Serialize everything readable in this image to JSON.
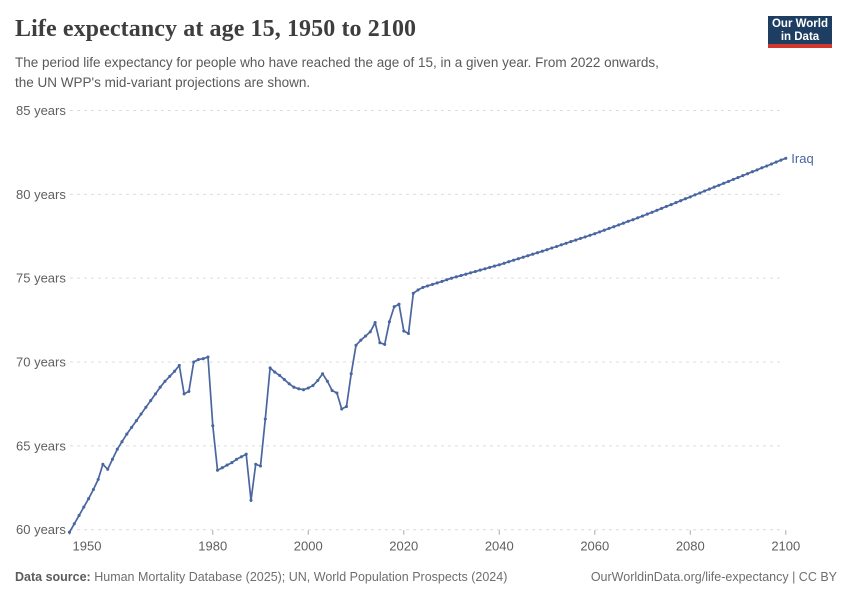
{
  "header": {
    "title": "Life expectancy at age 15, 1950 to 2100",
    "subtitle_line1": "The period life expectancy for people who have reached the age of 15, in a given year. From 2022 onwards,",
    "subtitle_line2": "the UN WPP's mid-variant projections are shown.",
    "logo": {
      "line1": "Our World",
      "line2": "in Data",
      "bg_color": "#1d3d63",
      "accent_color": "#d0372d"
    }
  },
  "footer": {
    "source_label": "Data source:",
    "source_text": "Human Mortality Database (2025); UN, World Population Prospects (2024)",
    "link_text": "OurWorldinData.org/life-expectancy | CC BY"
  },
  "chart_data": {
    "type": "line",
    "title": "Life expectancy at age 15, 1950 to 2100",
    "xlabel": "",
    "ylabel": "",
    "grid": "horizontal-dashed",
    "grid_color": "#dcdcdc",
    "axis_text_color": "#5f5f5f",
    "xlim": [
      1950,
      2100
    ],
    "ylim": [
      60,
      85
    ],
    "projection_start_year": 2022,
    "x_ticks": [
      {
        "value": 1950,
        "label": "1950"
      },
      {
        "value": 1980,
        "label": "1980"
      },
      {
        "value": 2000,
        "label": "2000"
      },
      {
        "value": 2020,
        "label": "2020"
      },
      {
        "value": 2040,
        "label": "2040"
      },
      {
        "value": 2060,
        "label": "2060"
      },
      {
        "value": 2080,
        "label": "2080"
      },
      {
        "value": 2100,
        "label": "2100"
      }
    ],
    "y_ticks": [
      {
        "value": 85,
        "label": "85 years"
      },
      {
        "value": 80,
        "label": "80 years"
      },
      {
        "value": 75,
        "label": "75 years"
      },
      {
        "value": 70,
        "label": "70 years"
      },
      {
        "value": 65,
        "label": "65 years"
      },
      {
        "value": 60,
        "label": "60 years"
      }
    ],
    "series": [
      {
        "name": "Iraq",
        "color": "#4a66a0",
        "points": [
          [
            1950,
            59.85
          ],
          [
            1951,
            60.35
          ],
          [
            1952,
            60.85
          ],
          [
            1953,
            61.35
          ],
          [
            1954,
            61.85
          ],
          [
            1955,
            62.4
          ],
          [
            1956,
            63.0
          ],
          [
            1957,
            63.9
          ],
          [
            1958,
            63.6
          ],
          [
            1959,
            64.2
          ],
          [
            1960,
            64.8
          ],
          [
            1961,
            65.25
          ],
          [
            1962,
            65.7
          ],
          [
            1963,
            66.1
          ],
          [
            1964,
            66.5
          ],
          [
            1965,
            66.9
          ],
          [
            1966,
            67.3
          ],
          [
            1967,
            67.7
          ],
          [
            1968,
            68.1
          ],
          [
            1969,
            68.5
          ],
          [
            1970,
            68.85
          ],
          [
            1971,
            69.15
          ],
          [
            1972,
            69.45
          ],
          [
            1973,
            69.8
          ],
          [
            1974,
            68.1
          ],
          [
            1975,
            68.25
          ],
          [
            1976,
            70.0
          ],
          [
            1977,
            70.15
          ],
          [
            1978,
            70.2
          ],
          [
            1979,
            70.3
          ],
          [
            1980,
            66.2
          ],
          [
            1981,
            63.55
          ],
          [
            1982,
            63.7
          ],
          [
            1983,
            63.85
          ],
          [
            1984,
            64.0
          ],
          [
            1985,
            64.2
          ],
          [
            1986,
            64.35
          ],
          [
            1987,
            64.5
          ],
          [
            1988,
            61.75
          ],
          [
            1989,
            63.9
          ],
          [
            1990,
            63.8
          ],
          [
            1991,
            66.6
          ],
          [
            1992,
            69.65
          ],
          [
            1993,
            69.4
          ],
          [
            1994,
            69.2
          ],
          [
            1995,
            68.95
          ],
          [
            1996,
            68.7
          ],
          [
            1997,
            68.5
          ],
          [
            1998,
            68.4
          ],
          [
            1999,
            68.35
          ],
          [
            2000,
            68.45
          ],
          [
            2001,
            68.6
          ],
          [
            2002,
            68.9
          ],
          [
            2003,
            69.3
          ],
          [
            2004,
            68.85
          ],
          [
            2005,
            68.3
          ],
          [
            2006,
            68.15
          ],
          [
            2007,
            67.2
          ],
          [
            2008,
            67.35
          ],
          [
            2009,
            69.3
          ],
          [
            2010,
            71.0
          ],
          [
            2011,
            71.3
          ],
          [
            2012,
            71.55
          ],
          [
            2013,
            71.8
          ],
          [
            2014,
            72.35
          ],
          [
            2015,
            71.15
          ],
          [
            2016,
            71.05
          ],
          [
            2017,
            72.4
          ],
          [
            2018,
            73.3
          ],
          [
            2019,
            73.45
          ],
          [
            2020,
            71.85
          ],
          [
            2021,
            71.7
          ],
          [
            2022,
            74.1
          ],
          [
            2023,
            74.3
          ],
          [
            2024,
            74.45
          ],
          [
            2025,
            74.54
          ],
          [
            2026,
            74.63
          ],
          [
            2027,
            74.72
          ],
          [
            2028,
            74.81
          ],
          [
            2029,
            74.91
          ],
          [
            2030,
            75.0
          ],
          [
            2031,
            75.08
          ],
          [
            2032,
            75.16
          ],
          [
            2033,
            75.24
          ],
          [
            2034,
            75.32
          ],
          [
            2035,
            75.4
          ],
          [
            2036,
            75.48
          ],
          [
            2037,
            75.56
          ],
          [
            2038,
            75.64
          ],
          [
            2039,
            75.72
          ],
          [
            2040,
            75.8
          ],
          [
            2041,
            75.89
          ],
          [
            2042,
            75.98
          ],
          [
            2043,
            76.07
          ],
          [
            2044,
            76.16
          ],
          [
            2045,
            76.25
          ],
          [
            2046,
            76.34
          ],
          [
            2047,
            76.43
          ],
          [
            2048,
            76.52
          ],
          [
            2049,
            76.61
          ],
          [
            2050,
            76.7
          ],
          [
            2051,
            76.8
          ],
          [
            2052,
            76.89
          ],
          [
            2053,
            76.99
          ],
          [
            2054,
            77.08
          ],
          [
            2055,
            77.18
          ],
          [
            2056,
            77.27
          ],
          [
            2057,
            77.37
          ],
          [
            2058,
            77.46
          ],
          [
            2059,
            77.56
          ],
          [
            2060,
            77.65
          ],
          [
            2061,
            77.76
          ],
          [
            2062,
            77.86
          ],
          [
            2063,
            77.97
          ],
          [
            2064,
            78.07
          ],
          [
            2065,
            78.18
          ],
          [
            2066,
            78.28
          ],
          [
            2067,
            78.39
          ],
          [
            2068,
            78.49
          ],
          [
            2069,
            78.6
          ],
          [
            2070,
            78.7
          ],
          [
            2071,
            78.82
          ],
          [
            2072,
            78.93
          ],
          [
            2073,
            79.05
          ],
          [
            2074,
            79.16
          ],
          [
            2075,
            79.28
          ],
          [
            2076,
            79.39
          ],
          [
            2077,
            79.51
          ],
          [
            2078,
            79.62
          ],
          [
            2079,
            79.74
          ],
          [
            2080,
            79.85
          ],
          [
            2081,
            79.97
          ],
          [
            2082,
            80.08
          ],
          [
            2083,
            80.2
          ],
          [
            2084,
            80.31
          ],
          [
            2085,
            80.43
          ],
          [
            2086,
            80.54
          ],
          [
            2087,
            80.66
          ],
          [
            2088,
            80.77
          ],
          [
            2089,
            80.89
          ],
          [
            2090,
            81.0
          ],
          [
            2091,
            81.12
          ],
          [
            2092,
            81.23
          ],
          [
            2093,
            81.35
          ],
          [
            2094,
            81.46
          ],
          [
            2095,
            81.58
          ],
          [
            2096,
            81.69
          ],
          [
            2097,
            81.81
          ],
          [
            2098,
            81.92
          ],
          [
            2099,
            82.04
          ],
          [
            2100,
            82.15
          ]
        ]
      }
    ],
    "legend_position": "end-of-line-label"
  }
}
